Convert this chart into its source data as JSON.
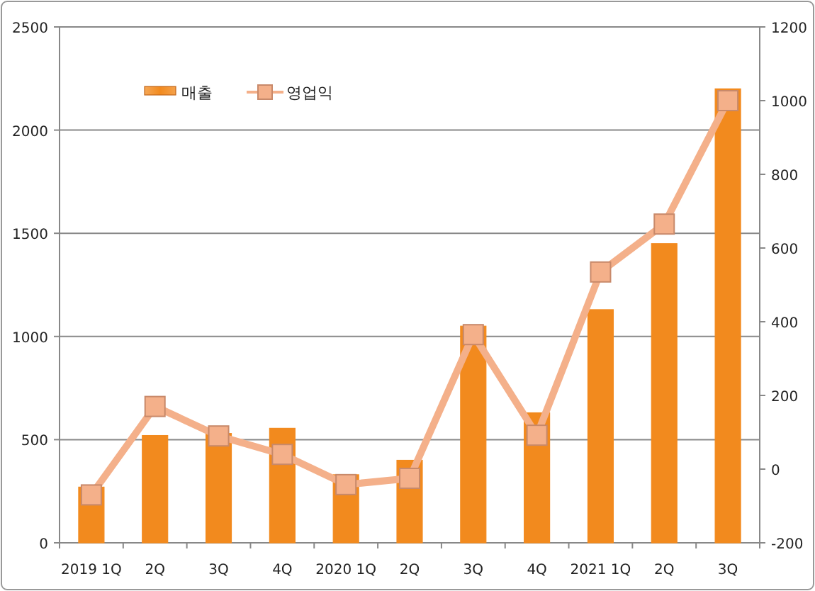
{
  "chart_data": {
    "type": "bar",
    "categories": [
      "2019 1Q",
      "2Q",
      "3Q",
      "4Q",
      "2020 1Q",
      "2Q",
      "3Q",
      "4Q",
      "2021 1Q",
      "2Q",
      "3Q"
    ],
    "series": [
      {
        "name": "매출",
        "color": "#f28a1e",
        "values": [
          270,
          520,
          530,
          555,
          330,
          400,
          1050,
          630,
          1130,
          1450,
          2200
        ]
      },
      {
        "name": "영업익",
        "type": "line",
        "axis": "y2",
        "color": "#f4b08a",
        "marker": "square",
        "values": [
          -70,
          170,
          90,
          40,
          -42,
          -25,
          365,
          92,
          535,
          665,
          1000
        ]
      }
    ],
    "ylim": [
      0,
      2500
    ],
    "yticks": [
      0,
      500,
      1000,
      1500,
      2000,
      2500
    ],
    "y2lim": [
      -200,
      1200
    ],
    "y2ticks": [
      -200,
      0,
      200,
      400,
      600,
      800,
      1000,
      1200
    ],
    "grid": "y",
    "legend": "top left"
  }
}
